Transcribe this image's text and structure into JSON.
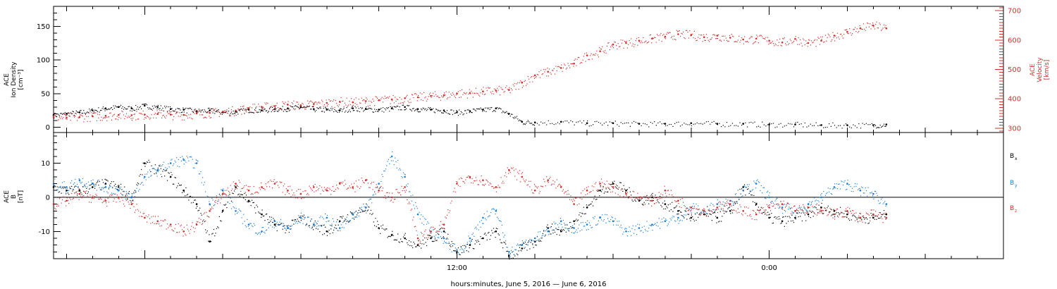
{
  "chart_data": [
    {
      "type": "scatter",
      "panel": "top",
      "ylabel_left": [
        "ACE",
        "Ion Density",
        "[cm⁻³]"
      ],
      "ylabel_right": [
        "ACE",
        "Velocity",
        "[km/s]"
      ],
      "yticks_left": [
        "0",
        "50",
        "100",
        "150"
      ],
      "yticks_right": [
        "300",
        "400",
        "500",
        "600",
        "700"
      ],
      "ylim_left": [
        -8,
        180
      ],
      "ylim_right": [
        285,
        715
      ],
      "series": [
        {
          "key": "density",
          "color": "#000000",
          "x_hours": [
            -3.5,
            -3,
            -2.5,
            -2,
            -1.5,
            -1,
            -0.5,
            0,
            0.5,
            1,
            1.5,
            2,
            2.5,
            3,
            3.5,
            4,
            4.5,
            5,
            5.5,
            6,
            6.5,
            7,
            7.5,
            8,
            8.5,
            9,
            9.5,
            10,
            10.5,
            11,
            11.5,
            12,
            12.5,
            13,
            13.5,
            14,
            14.5,
            15,
            16,
            17,
            18,
            19,
            20,
            21,
            22,
            23,
            24,
            25,
            26,
            27,
            28,
            28.5
          ],
          "values": [
            18,
            20,
            22,
            25,
            28,
            30,
            28,
            32,
            30,
            27,
            26,
            24,
            25,
            22,
            23,
            26,
            25,
            27,
            28,
            30,
            27,
            26,
            25,
            28,
            27,
            26,
            28,
            30,
            27,
            26,
            25,
            22,
            24,
            26,
            28,
            20,
            8,
            7,
            8,
            6,
            6,
            5,
            5,
            6,
            5,
            5,
            4,
            4,
            3,
            3,
            3,
            4
          ]
        },
        {
          "key": "velocity",
          "color": "#d0302c",
          "x_hours": [
            -3.5,
            -3,
            -2.5,
            -2,
            -1.5,
            -1,
            -0.5,
            0,
            0.5,
            1,
            1.5,
            2,
            2.5,
            3,
            3.5,
            4,
            4.5,
            5,
            5.5,
            6,
            6.5,
            7,
            7.5,
            8,
            8.5,
            9,
            9.5,
            10,
            10.5,
            11,
            11.5,
            12,
            12.5,
            13,
            13.5,
            14,
            14.5,
            15,
            15.5,
            16,
            16.5,
            17,
            17.5,
            18,
            18.5,
            19,
            19.5,
            20,
            20.5,
            21,
            21.5,
            22,
            22.5,
            23,
            23.5,
            24,
            24.5,
            25,
            25.5,
            26,
            26.5,
            27,
            27.5,
            28,
            28.5
          ],
          "values": [
            338,
            336,
            338,
            340,
            342,
            345,
            344,
            346,
            348,
            346,
            345,
            350,
            352,
            356,
            360,
            368,
            372,
            375,
            380,
            378,
            382,
            386,
            390,
            388,
            392,
            395,
            398,
            402,
            405,
            410,
            412,
            418,
            420,
            425,
            428,
            430,
            455,
            480,
            492,
            505,
            520,
            548,
            562,
            585,
            590,
            598,
            605,
            612,
            620,
            618,
            610,
            615,
            608,
            602,
            605,
            598,
            592,
            604,
            590,
            598,
            615,
            628,
            640,
            650,
            640
          ]
        }
      ]
    },
    {
      "type": "scatter",
      "panel": "bottom",
      "ylabel": [
        "ACE",
        "B",
        "[nT]"
      ],
      "yticks": [
        "-10",
        "0",
        "10"
      ],
      "ylim": [
        -18,
        19
      ],
      "legend": [
        {
          "label": "B",
          "sub": "x",
          "color": "#000000"
        },
        {
          "label": "B",
          "sub": "y",
          "color": "#1a7fd6"
        },
        {
          "label": "B",
          "sub": "z",
          "color": "#d0302c"
        }
      ],
      "series": [
        {
          "key": "bx",
          "color": "#000000",
          "x_hours": [
            -3.5,
            -3,
            -2.5,
            -2,
            -1.5,
            -1,
            -0.5,
            0,
            0.5,
            1,
            1.5,
            2,
            2.5,
            3,
            3.5,
            4,
            4.5,
            5,
            5.5,
            6,
            6.5,
            7,
            7.5,
            8,
            8.5,
            9,
            9.5,
            10,
            10.5,
            11,
            11.5,
            12,
            12.5,
            13,
            13.5,
            14,
            14.5,
            15,
            15.5,
            16,
            16.5,
            17,
            17.5,
            18,
            18.5,
            19,
            19.5,
            20,
            20.5,
            21,
            21.5,
            22,
            22.5,
            23,
            23.5,
            24,
            24.5,
            25,
            25.5,
            26,
            26.5,
            27,
            27.5,
            28,
            28.5
          ],
          "values": [
            3,
            2,
            2,
            3,
            4,
            3,
            0,
            10,
            8,
            6,
            2,
            -2,
            -13,
            -4,
            3,
            -1,
            -5,
            -8,
            -9,
            -6,
            -8,
            -10,
            -7,
            -5,
            -3,
            -9,
            -11,
            -12,
            -14,
            -12,
            -10,
            -16,
            -14,
            -12,
            -10,
            -17,
            -15,
            -13,
            -9,
            -10,
            -7,
            -3,
            2,
            4,
            2,
            -1,
            0,
            -2,
            -4,
            -6,
            -5,
            -6,
            -4,
            3,
            -2,
            -6,
            -7,
            -6,
            -5,
            -3,
            -4,
            -5,
            -6,
            -6,
            -5
          ]
        },
        {
          "key": "by",
          "color": "#1a7fd6",
          "x_hours": [
            -3.5,
            -3,
            -2.5,
            -2,
            -1.5,
            -1,
            -0.5,
            0,
            0.5,
            1,
            1.5,
            2,
            2.5,
            3,
            3.5,
            4,
            4.5,
            5,
            5.5,
            6,
            6.5,
            7,
            7.5,
            8,
            8.5,
            9,
            9.5,
            10,
            10.5,
            11,
            11.5,
            12,
            12.5,
            13,
            13.5,
            14,
            14.5,
            15,
            15.5,
            16,
            16.5,
            17,
            17.5,
            18,
            18.5,
            19,
            19.5,
            20,
            20.5,
            21,
            21.5,
            22,
            22.5,
            23,
            23.5,
            24,
            24.5,
            25,
            25.5,
            26,
            26.5,
            27,
            27.5,
            28,
            28.5
          ],
          "values": [
            4,
            3,
            5,
            4,
            3,
            2,
            0,
            6,
            8,
            10,
            11,
            10,
            -2,
            2,
            -4,
            -8,
            -10,
            -7,
            -9,
            -6,
            -8,
            -6,
            -9,
            -5,
            -3,
            4,
            12,
            6,
            -5,
            -10,
            -12,
            -16,
            -12,
            -6,
            -4,
            -16,
            -14,
            -12,
            -10,
            -7,
            -9,
            -8,
            -6,
            -7,
            -10,
            -9,
            -8,
            -7,
            -6,
            -3,
            -4,
            -2,
            -1,
            2,
            4,
            0,
            -3,
            -4,
            -2,
            0,
            3,
            4,
            2,
            1,
            -2
          ]
        },
        {
          "key": "bz",
          "color": "#d0302c",
          "x_hours": [
            -3.5,
            -3,
            -2.5,
            -2,
            -1.5,
            -1,
            -0.5,
            0,
            0.5,
            1,
            1.5,
            2,
            2.5,
            3,
            3.5,
            4,
            4.5,
            5,
            5.5,
            6,
            6.5,
            7,
            7.5,
            8,
            8.5,
            9,
            9.5,
            10,
            10.5,
            11,
            11.5,
            12,
            12.5,
            13,
            13.5,
            14,
            14.5,
            15,
            15.5,
            16,
            16.5,
            17,
            17.5,
            18,
            18.5,
            19,
            19.5,
            20,
            20.5,
            21,
            21.5,
            22,
            22.5,
            23,
            23.5,
            24,
            24.5,
            25,
            25.5,
            26,
            26.5,
            27,
            27.5,
            28,
            28.5
          ],
          "values": [
            -2,
            -1,
            1,
            0,
            -1,
            0,
            -2,
            -6,
            -7,
            -8,
            -10,
            -8,
            -4,
            1,
            4,
            2,
            3,
            4,
            2,
            1,
            3,
            2,
            4,
            3,
            5,
            2,
            0,
            3,
            -12,
            -10,
            -8,
            4,
            6,
            5,
            3,
            8,
            6,
            2,
            5,
            3,
            -2,
            2,
            4,
            3,
            1,
            0,
            -1,
            2,
            -1,
            -3,
            -4,
            -3,
            -2,
            -4,
            -5,
            -3,
            -2,
            -4,
            -3,
            -4,
            -5,
            -4,
            -6,
            -5,
            -6
          ]
        }
      ]
    },
    {
      "type": "axis",
      "panel": "time-axis",
      "xlim_hours": [
        -3.5,
        33
      ],
      "xtick_labels": [
        {
          "at_hours": 12,
          "label": "12:00"
        },
        {
          "at_hours": 24,
          "label": "0:00"
        }
      ],
      "xlabel": "hours:minutes, June  5, 2016 — June  6, 2016"
    }
  ]
}
